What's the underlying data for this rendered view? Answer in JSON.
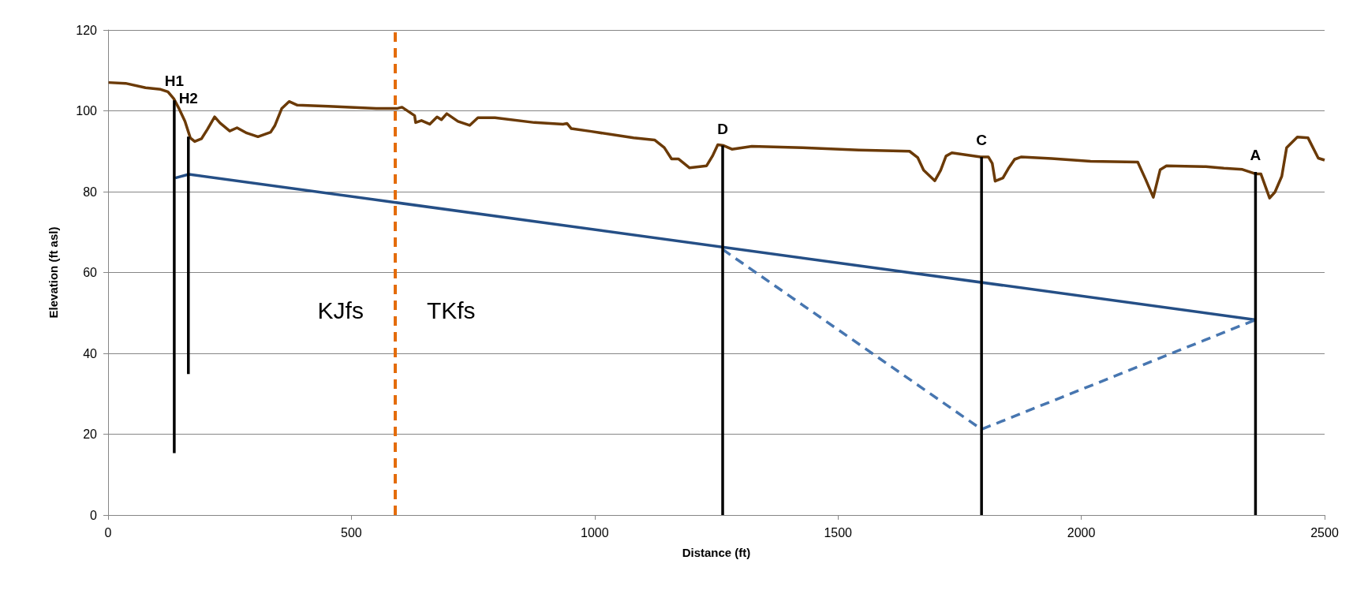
{
  "chart_data": {
    "type": "line",
    "xlabel": "Distance (ft)",
    "ylabel": "Elevation (ft asl)",
    "xlim": [
      0,
      2500
    ],
    "xticks": [
      0,
      500,
      1000,
      1500,
      2000,
      2500
    ],
    "ylim": [
      0,
      120
    ],
    "yticks": [
      0,
      20,
      40,
      60,
      80,
      100,
      120
    ],
    "grid": "y",
    "marker": "none",
    "series": [
      {
        "color": "#6b3a07",
        "line_style": "solid",
        "x": [
          1,
          36,
          77,
          108,
          123,
          135,
          146,
          158,
          169,
          178,
          192,
          204,
          219,
          230,
          250,
          265,
          285,
          308,
          334,
          343,
          357,
          372,
          389,
          453,
          551,
          595,
          604,
          630,
          632,
          644,
          661,
          676,
          685,
          696,
          719,
          743,
          760,
          795,
          876,
          935,
          943,
          952,
          993,
          1080,
          1123,
          1143,
          1158,
          1172,
          1195,
          1230,
          1242,
          1253,
          1265,
          1282,
          1323,
          1427,
          1543,
          1647,
          1664,
          1676,
          1699,
          1711,
          1722,
          1734,
          1793,
          1809,
          1817,
          1823,
          1839,
          1850,
          1863,
          1877,
          1939,
          2019,
          2116,
          2132,
          2148,
          2162,
          2175,
          2256,
          2293,
          2331,
          2358,
          2369,
          2387,
          2398,
          2412,
          2422,
          2444,
          2466,
          2487,
          2500
        ],
        "values": [
          107,
          106.8,
          105.7,
          105.3,
          104.7,
          103,
          100.5,
          97.4,
          93.3,
          92.4,
          93.1,
          95.4,
          98.5,
          97,
          95,
          95.8,
          94.5,
          93.6,
          94.7,
          96.4,
          100.6,
          102.3,
          101.4,
          101.1,
          100.6,
          100.6,
          100.9,
          98.8,
          97.1,
          97.6,
          96.7,
          98.5,
          97.8,
          99.3,
          97.4,
          96.4,
          98.3,
          98.3,
          97.1,
          96.7,
          96.9,
          95.6,
          94.9,
          93.3,
          92.8,
          90.9,
          88.1,
          88.1,
          85.9,
          86.4,
          88.8,
          91.6,
          91.4,
          90.5,
          91.2,
          90.9,
          90.3,
          90,
          88.4,
          85.3,
          82.7,
          85.3,
          88.8,
          89.6,
          88.6,
          88.6,
          87,
          82.6,
          83.4,
          85.7,
          88,
          88.6,
          88.2,
          87.5,
          87.3,
          83.1,
          78.6,
          85.4,
          86.4,
          86.2,
          85.8,
          85.5,
          84.4,
          84.4,
          78.4,
          79.9,
          83.8,
          90.9,
          93.5,
          93.3,
          88.3,
          87.8
        ]
      },
      {
        "color": "#254f86",
        "line_style": "solid",
        "x": [
          138,
          166,
          2358
        ],
        "values": [
          83.4,
          84.3,
          48.3
        ]
      },
      {
        "color": "#4776b0",
        "line_style": "dashed",
        "x": [
          1263,
          1795,
          2358
        ],
        "values": [
          65.7,
          21.2,
          48.3
        ]
      },
      {
        "color": "#000000",
        "line_style": "solid",
        "x": [
          136,
          136
        ],
        "values": [
          15.3,
          102.6
        ]
      },
      {
        "color": "#000000",
        "line_style": "solid",
        "x": [
          165,
          165
        ],
        "values": [
          34.9,
          93.6
        ]
      },
      {
        "color": "#000000",
        "line_style": "solid",
        "x": [
          1263,
          1263
        ],
        "values": [
          0,
          91.4
        ]
      },
      {
        "color": "#000000",
        "line_style": "solid",
        "x": [
          1795,
          1795
        ],
        "values": [
          0,
          88.6
        ]
      },
      {
        "color": "#000000",
        "line_style": "solid",
        "x": [
          2358,
          2358
        ],
        "values": [
          0,
          84.9
        ]
      }
    ],
    "ref_lines": [
      {
        "axis": "x",
        "value": 590,
        "label": null,
        "color": "#e46c0a",
        "line_style": "dashed"
      }
    ],
    "annotations": [
      {
        "text": "H1",
        "x": 136,
        "y": 102.6
      },
      {
        "text": "H2",
        "x": 165,
        "y": 93.6
      },
      {
        "text": "D",
        "x": 1263,
        "y": 91.4
      },
      {
        "text": "C",
        "x": 1795,
        "y": 88.6
      },
      {
        "text": "A",
        "x": 2358,
        "y": 84.9
      },
      {
        "text": "KJfs",
        "x": 590,
        "y": 50.6
      },
      {
        "text": "TKfs",
        "x": 590,
        "y": 50.6
      }
    ]
  }
}
